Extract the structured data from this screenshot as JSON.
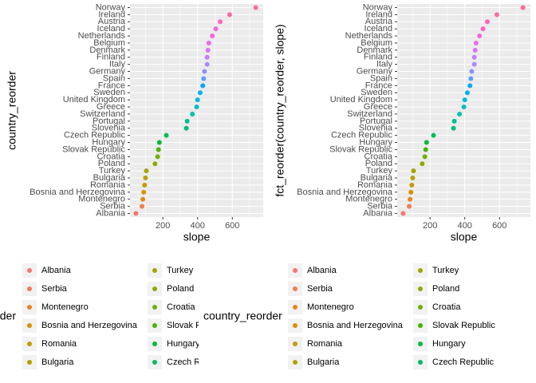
{
  "chart_data": [
    {
      "type": "dot",
      "x_label": "slope",
      "y_label": "country_reorder",
      "categories": [
        "Albania",
        "Serbia",
        "Montenegro",
        "Bosnia and Herzegovina",
        "Romania",
        "Bulgaria",
        "Turkey",
        "Poland",
        "Croatia",
        "Slovak Republic",
        "Hungary",
        "Czech Republic",
        "Slovenia",
        "Portugal",
        "Switzerland",
        "Greece",
        "United Kingdom",
        "Sweden",
        "France",
        "Spain",
        "Germany",
        "Italy",
        "Finland",
        "Denmark",
        "Belgium",
        "Netherlands",
        "Iceland",
        "Austria",
        "Ireland",
        "Norway"
      ],
      "values": [
        45,
        80,
        85,
        90,
        95,
        100,
        105,
        155,
        170,
        175,
        180,
        220,
        335,
        340,
        370,
        395,
        400,
        415,
        430,
        435,
        440,
        455,
        455,
        460,
        465,
        485,
        505,
        530,
        585,
        735
      ],
      "colors": [
        "#F8766D",
        "#F27D52",
        "#E7851E",
        "#D98F00",
        "#C99800",
        "#B79F00",
        "#A3A500",
        "#8CAB00",
        "#6FB000",
        "#45B500",
        "#00BA38",
        "#00BD5C",
        "#00BF78",
        "#00C090",
        "#00C1A9",
        "#00BFC4",
        "#00BADE",
        "#00B0F6",
        "#00A8FF",
        "#619CFF",
        "#8F91FF",
        "#AE87FF",
        "#C77CFF",
        "#DB72FB",
        "#E96AF0",
        "#F564E3",
        "#FC61D5",
        "#FF62BC",
        "#FF67A4",
        "#FF6C91"
      ],
      "xlim": [
        11,
        778
      ],
      "xticks": [
        200,
        400,
        600
      ],
      "grid": true,
      "legend_title": "country_reorder",
      "legend_position": "bottom"
    },
    {
      "type": "dot",
      "x_label": "slope",
      "y_label": "fct_reorder(country_reorder, slope)",
      "categories": [
        "Albania",
        "Serbia",
        "Montenegro",
        "Bosnia and Herzegovina",
        "Romania",
        "Bulgaria",
        "Turkey",
        "Poland",
        "Croatia",
        "Slovak Republic",
        "Hungary",
        "Czech Republic",
        "Slovenia",
        "Portugal",
        "Switzerland",
        "Greece",
        "United Kingdom",
        "Sweden",
        "France",
        "Spain",
        "Germany",
        "Italy",
        "Finland",
        "Denmark",
        "Belgium",
        "Netherlands",
        "Iceland",
        "Austria",
        "Ireland",
        "Norway"
      ],
      "values": [
        45,
        80,
        85,
        90,
        95,
        100,
        105,
        155,
        170,
        175,
        180,
        220,
        335,
        340,
        370,
        395,
        400,
        415,
        430,
        435,
        440,
        455,
        455,
        460,
        465,
        485,
        505,
        530,
        585,
        735
      ],
      "colors": [
        "#F8766D",
        "#F27D52",
        "#E7851E",
        "#D98F00",
        "#C99800",
        "#B79F00",
        "#A3A500",
        "#8CAB00",
        "#6FB000",
        "#45B500",
        "#00BA38",
        "#00BD5C",
        "#00BF78",
        "#00C090",
        "#00C1A9",
        "#00BFC4",
        "#00BADE",
        "#00B0F6",
        "#00A8FF",
        "#619CFF",
        "#8F91FF",
        "#AE87FF",
        "#C77CFF",
        "#DB72FB",
        "#E96AF0",
        "#F564E3",
        "#FC61D5",
        "#FF62BC",
        "#FF67A4",
        "#FF6C91"
      ],
      "xlim": [
        11,
        778
      ],
      "xticks": [
        200,
        400,
        600
      ],
      "grid": true,
      "legend_title": "country_reorder",
      "legend_position": "bottom"
    }
  ]
}
